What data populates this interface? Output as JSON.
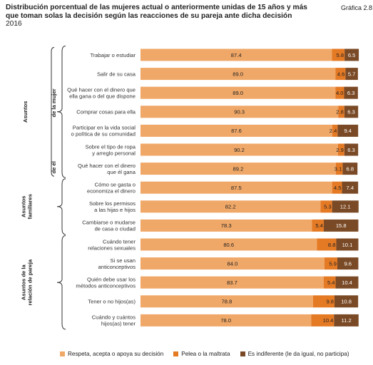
{
  "header": {
    "title": "Distribución porcentual de las mujeres actual o anteriormente unidas de 15 años y más que toman solas la decisión según las reacciones de su pareja ante dicha decisión",
    "year": "2016",
    "figure_label": "Gráfica 2.8"
  },
  "colors": {
    "respeta": "#f0a868",
    "pelea": "#e57a25",
    "indiferente": "#7a4a26",
    "text_light": "#ffffff",
    "text_dark": "#222222"
  },
  "chart_data": {
    "type": "bar",
    "orientation": "horizontal",
    "stacked": true,
    "xlim": [
      0,
      100
    ],
    "categories": [
      "Trabajar o estudiar",
      "Salir de su casa",
      "Qué hacer con el dinero que ella gana o del que dispone",
      "Comprar cosas para ella",
      "Participar en la vida social o política de su comunidad",
      "Sobre el tipo de ropa y arreglo personal",
      "Qué hacer con el dinero que él gana",
      "Cómo se gasta o economiza el dinero",
      "Sobre los permisos a las hijas e hijos",
      "Cambiarse o mudarse de casa o ciudad",
      "Cuándo tener relaciones sexuales",
      "Si se usan anticonceptivos",
      "Quién debe usar los métodos anticonceptivos",
      "Tener o no hijos(as)",
      "Cuándo y cuántos hijos(as) tener"
    ],
    "category_lines": [
      [
        "Trabajar o estudiar"
      ],
      [
        "Salir de su casa"
      ],
      [
        "Qué hacer con el dinero que",
        "ella gana o del que dispone"
      ],
      [
        "Comprar cosas para ella"
      ],
      [
        "Participar en la vida social",
        "o política de su comunidad"
      ],
      [
        "Sobre el tipo de ropa",
        "y arreglo personal"
      ],
      [
        "Qué hacer con el dinero",
        "que él gana"
      ],
      [
        "Cómo se gasta o",
        "economiza el dinero"
      ],
      [
        "Sobre los permisos",
        "a las hijas e hijos"
      ],
      [
        "Cambiarse o mudarse",
        "de casa o ciudad"
      ],
      [
        "Cuándo tener",
        "relaciones sexuales"
      ],
      [
        "Si se usan",
        "anticonceptivos"
      ],
      [
        "Quién debe usar los",
        "métodos anticonceptivos"
      ],
      [
        "Tener o no hijos(as)"
      ],
      [
        "Cuándo y cuántos",
        "hijos(as) tener"
      ]
    ],
    "series": [
      {
        "name": "Respeta, acepta o apoya su decisión",
        "values": [
          87.4,
          89.0,
          89.0,
          90.3,
          87.6,
          90.2,
          89.2,
          87.5,
          82.2,
          78.3,
          80.6,
          84.0,
          83.7,
          78.8,
          78.0
        ]
      },
      {
        "name": "Pelea o la maltrata",
        "values": [
          5.8,
          4.6,
          4.0,
          2.8,
          2.4,
          2.9,
          3.1,
          4.5,
          5.3,
          5.4,
          8.8,
          5.9,
          5.4,
          9.8,
          10.4
        ]
      },
      {
        "name": "Es indiferente (le da igual, no participa)",
        "values": [
          6.5,
          5.7,
          6.3,
          6.3,
          9.4,
          6.3,
          6.8,
          7.4,
          12.1,
          15.8,
          10.1,
          9.6,
          10.4,
          10.8,
          11.2
        ]
      }
    ],
    "label_texts": [
      [
        "87.4",
        "5.8",
        "6.5"
      ],
      [
        "89.0",
        "4.6",
        "5.7"
      ],
      [
        "89.0",
        "4.0",
        "6.3"
      ],
      [
        "90.3",
        "2.8",
        "6.3"
      ],
      [
        "87.6",
        "2.4",
        "9.4"
      ],
      [
        "90.2",
        "2.9",
        "6.3"
      ],
      [
        "89.2",
        "3.1",
        "6.8"
      ],
      [
        "87.5",
        "4.5",
        "7.4"
      ],
      [
        "82.2",
        "5.3",
        "12.1"
      ],
      [
        "78.3",
        "5.4",
        "15.8"
      ],
      [
        "80.6",
        "8.8",
        "10.1"
      ],
      [
        "84.0",
        "5.9",
        "9.6"
      ],
      [
        "83.7",
        "5.4",
        "10.4"
      ],
      [
        "78.8",
        "9.8",
        "10.8"
      ],
      [
        "78.0",
        "10.4",
        "11.2"
      ]
    ],
    "groups": [
      {
        "label_lines": [
          "Asuntos"
        ],
        "sublabel_lines": [
          "de él",
          "de la mujer"
        ],
        "first": 0,
        "last": 6
      },
      {
        "label_lines": [
          "Asuntos",
          "familiares"
        ],
        "sublabel_lines": [],
        "first": 7,
        "last": 9
      },
      {
        "label_lines": [
          "Asuntos de la",
          "relación de pareja"
        ],
        "sublabel_lines": [],
        "first": 10,
        "last": 14
      }
    ],
    "legend_position": "bottom"
  }
}
